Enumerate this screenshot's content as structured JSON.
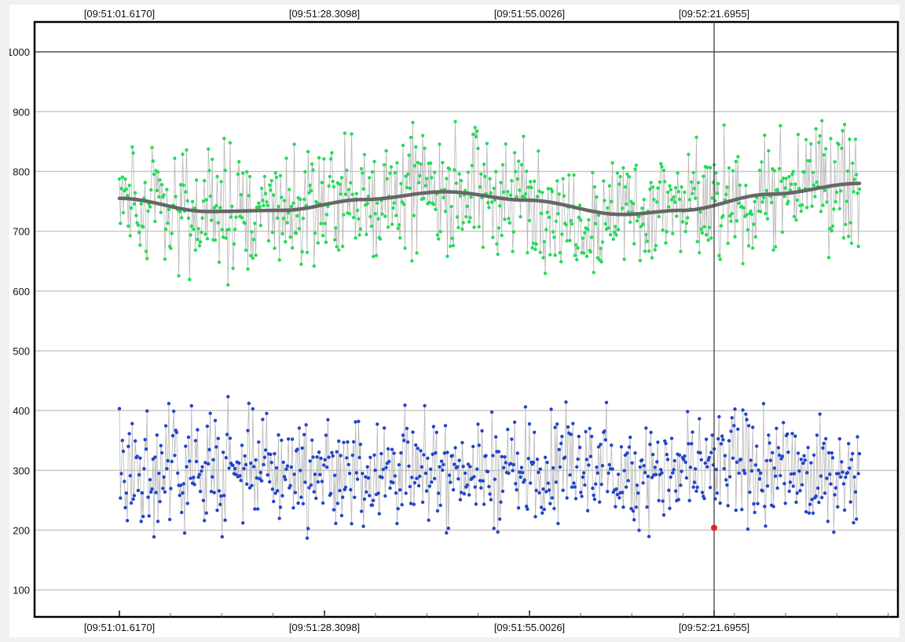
{
  "chart_data": {
    "type": "scatter",
    "title": "",
    "xlabel": "",
    "ylabel": "",
    "x_tick_labels": [
      "[09:51:01.6170]",
      "[09:51:28.3098]",
      "[09:51:55.0026]",
      "[09:52:21.6955]"
    ],
    "y_ticks": [
      100,
      200,
      300,
      400,
      500,
      600,
      700,
      800,
      900,
      1000
    ],
    "ylim": [
      55,
      1050
    ],
    "grid": true,
    "legend": "none",
    "point_count_per_series": 750,
    "series": [
      {
        "color": "#22dd55",
        "description_center_curve": true,
        "range": [
          520,
          1015
        ],
        "trend": [
          {
            "t": 0.0,
            "y": 755
          },
          {
            "t": 0.12,
            "y": 733
          },
          {
            "t": 0.22,
            "y": 735
          },
          {
            "t": 0.33,
            "y": 753
          },
          {
            "t": 0.44,
            "y": 766
          },
          {
            "t": 0.55,
            "y": 752
          },
          {
            "t": 0.68,
            "y": 728
          },
          {
            "t": 0.76,
            "y": 735
          },
          {
            "t": 0.88,
            "y": 762
          },
          {
            "t": 1.0,
            "y": 780
          }
        ]
      },
      {
        "color": "#2244cc",
        "center": 300,
        "range": [
          80,
          530
        ]
      }
    ],
    "colors": {
      "trend_line": "#666666",
      "connector": "#b8b8b8",
      "grid": "#c8c8c8",
      "crosshair": "#333333",
      "marker": "#ee2222"
    },
    "crosshair_at_tick": 3,
    "marker": {
      "y": 204
    }
  }
}
